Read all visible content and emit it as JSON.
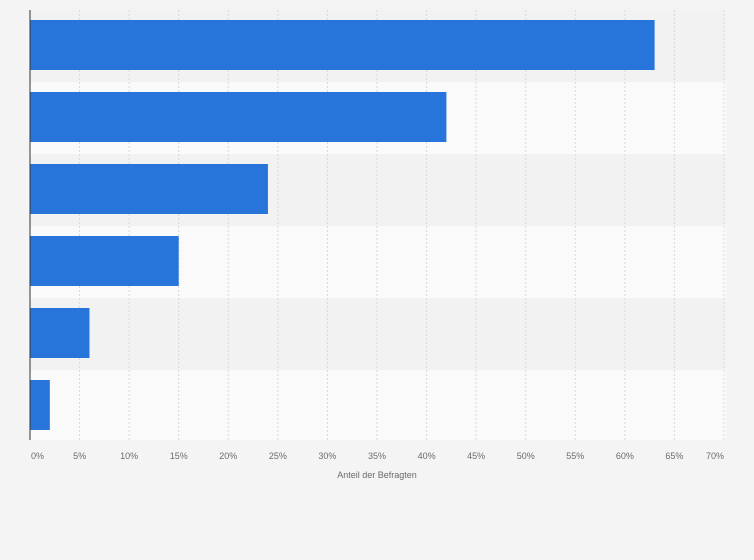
{
  "chart_data": {
    "type": "bar",
    "orientation": "horizontal",
    "categories": [
      "",
      "",
      "",
      "",
      "",
      ""
    ],
    "values": [
      63,
      42,
      24,
      15,
      6,
      2
    ],
    "xlabel": "Anteil der Befragten",
    "ylabel": "",
    "xlim": [
      0,
      70
    ],
    "xticks": [
      0,
      5,
      10,
      15,
      20,
      25,
      30,
      35,
      40,
      45,
      50,
      55,
      60,
      65,
      70
    ],
    "xtick_labels": [
      "0%",
      "5%",
      "10%",
      "15%",
      "20%",
      "25%",
      "30%",
      "35%",
      "40%",
      "45%",
      "50%",
      "55%",
      "60%",
      "65%",
      "70%"
    ],
    "grid": true,
    "bar_color": "#2775db",
    "band_colors": [
      "#f2f2f2",
      "#fafafa"
    ],
    "grid_color": "#d8d8d8",
    "axis_color": "#333333"
  }
}
